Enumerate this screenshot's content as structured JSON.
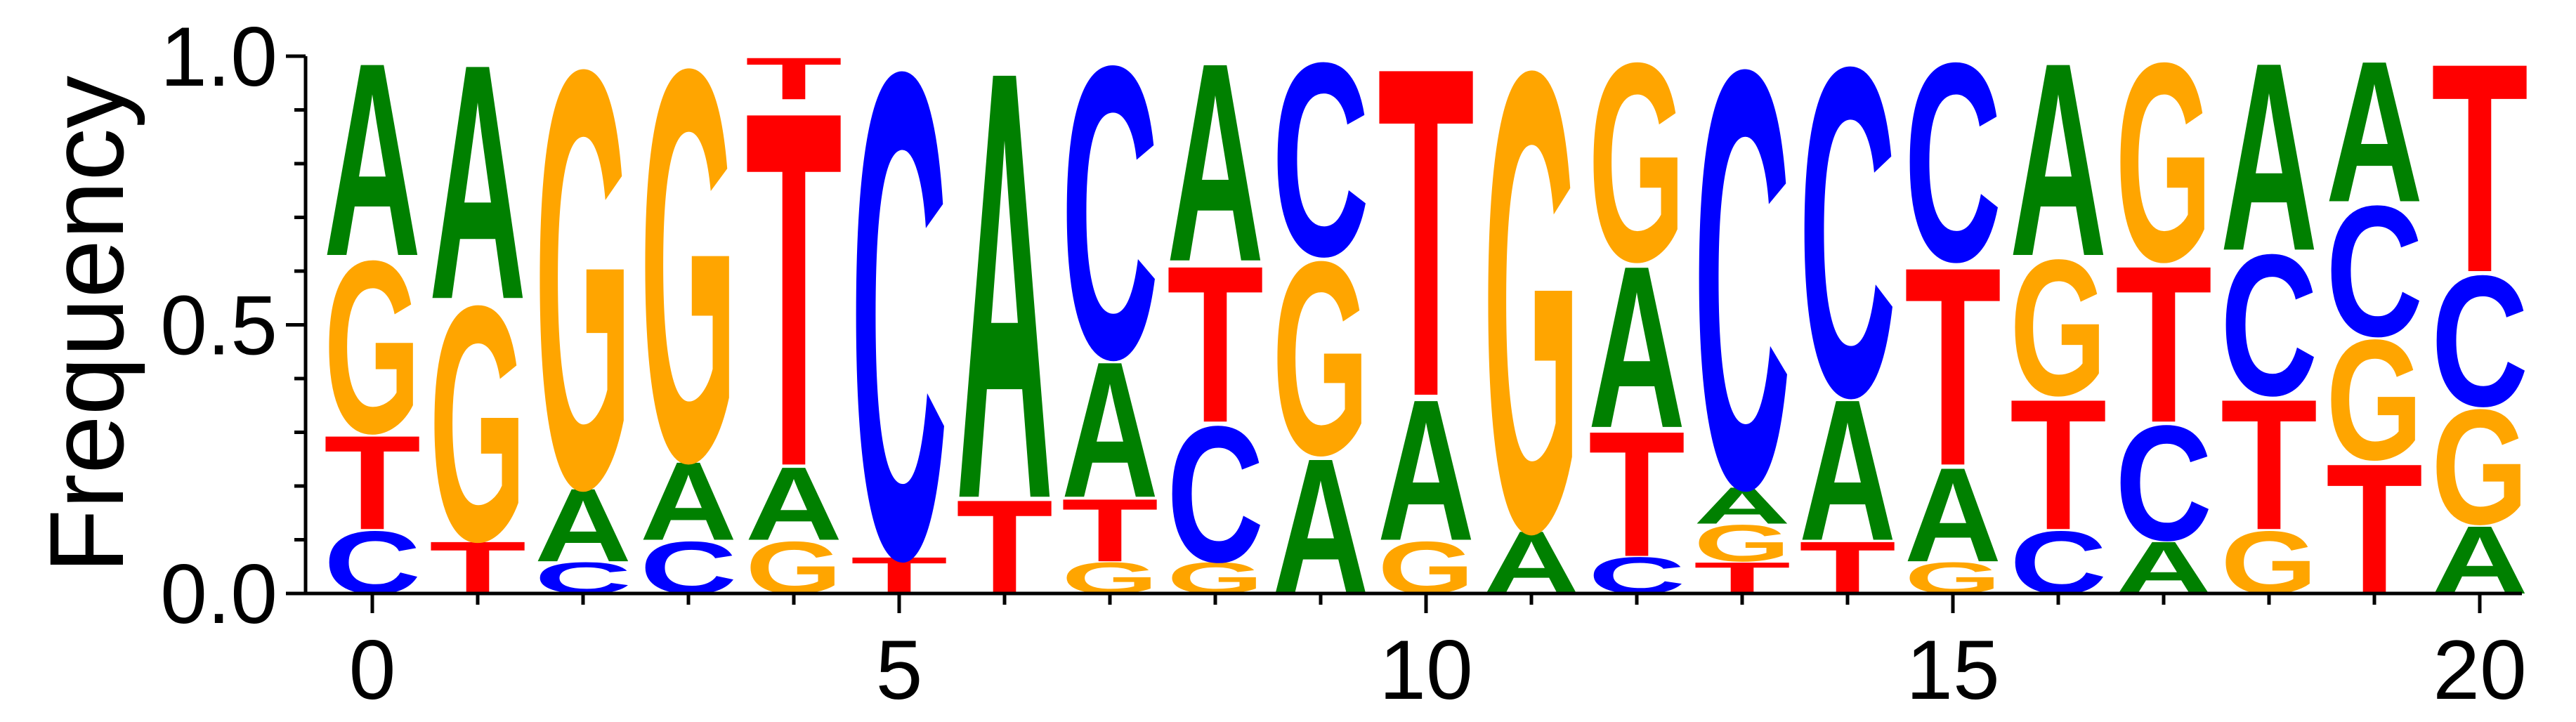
{
  "chart_data": {
    "type": "sequence-logo",
    "ylabel": "Frequency",
    "ylim": [
      0,
      1
    ],
    "yticks": [
      "0.0",
      "0.5",
      "1.0"
    ],
    "xticks": [
      "0",
      "5",
      "10",
      "15",
      "20"
    ],
    "xtick_values": [
      0,
      5,
      10,
      15,
      20
    ],
    "colors": {
      "A": "#008000",
      "C": "#0000ff",
      "G": "#ffa500",
      "T": "#ff0000"
    },
    "positions": [
      {
        "pos": 0,
        "stack": [
          [
            "C",
            0.12
          ],
          [
            "T",
            0.18
          ],
          [
            "G",
            0.33
          ],
          [
            "A",
            0.37
          ]
        ]
      },
      {
        "pos": 1,
        "stack": [
          [
            "T",
            0.1
          ],
          [
            "G",
            0.45
          ],
          [
            "A",
            0.45
          ]
        ]
      },
      {
        "pos": 2,
        "stack": [
          [
            "C",
            0.06
          ],
          [
            "A",
            0.14
          ],
          [
            "G",
            0.8
          ]
        ]
      },
      {
        "pos": 3,
        "stack": [
          [
            "C",
            0.1
          ],
          [
            "A",
            0.15
          ],
          [
            "G",
            0.75
          ]
        ]
      },
      {
        "pos": 4,
        "stack": [
          [
            "G",
            0.1
          ],
          [
            "A",
            0.14
          ],
          [
            "T",
            0.68
          ],
          [
            "T2",
            0.08
          ]
        ]
      },
      {
        "pos": 5,
        "stack": [
          [
            "T",
            0.07
          ],
          [
            "C",
            0.93
          ]
        ]
      },
      {
        "pos": 6,
        "stack": [
          [
            "T",
            0.18
          ],
          [
            "A",
            0.82
          ]
        ]
      },
      {
        "pos": 7,
        "stack": [
          [
            "G",
            0.06
          ],
          [
            "T",
            0.12
          ],
          [
            "A",
            0.26
          ],
          [
            "C",
            0.56
          ]
        ]
      },
      {
        "pos": 8,
        "stack": [
          [
            "G",
            0.06
          ],
          [
            "C",
            0.26
          ],
          [
            "T",
            0.3
          ],
          [
            "A",
            0.38
          ]
        ]
      },
      {
        "pos": 9,
        "stack": [
          [
            "A",
            0.26
          ],
          [
            "G",
            0.37
          ],
          [
            "C",
            0.37
          ]
        ]
      },
      {
        "pos": 10,
        "stack": [
          [
            "G",
            0.1
          ],
          [
            "A",
            0.27
          ],
          [
            "T",
            0.63
          ]
        ]
      },
      {
        "pos": 11,
        "stack": [
          [
            "A",
            0.12
          ],
          [
            "G",
            0.88
          ]
        ]
      },
      {
        "pos": 12,
        "stack": [
          [
            "C",
            0.07
          ],
          [
            "T",
            0.24
          ],
          [
            "A",
            0.31
          ],
          [
            "G",
            0.38
          ]
        ]
      },
      {
        "pos": 13,
        "stack": [
          [
            "T",
            0.06
          ],
          [
            "G",
            0.07
          ],
          [
            "A",
            0.07
          ],
          [
            "C",
            0.8
          ]
        ]
      },
      {
        "pos": 14,
        "stack": [
          [
            "T",
            0.1
          ],
          [
            "A",
            0.27
          ],
          [
            "C",
            0.63
          ]
        ]
      },
      {
        "pos": 15,
        "stack": [
          [
            "G",
            0.06
          ],
          [
            "A",
            0.18
          ],
          [
            "T",
            0.38
          ],
          [
            "C",
            0.38
          ]
        ]
      },
      {
        "pos": 16,
        "stack": [
          [
            "C",
            0.12
          ],
          [
            "T",
            0.25
          ],
          [
            "G",
            0.26
          ],
          [
            "A",
            0.37
          ]
        ]
      },
      {
        "pos": 17,
        "stack": [
          [
            "A",
            0.1
          ],
          [
            "C",
            0.22
          ],
          [
            "T",
            0.3
          ],
          [
            "G",
            0.38
          ]
        ]
      },
      {
        "pos": 18,
        "stack": [
          [
            "G",
            0.12
          ],
          [
            "T",
            0.25
          ],
          [
            "C",
            0.27
          ],
          [
            "A",
            0.36
          ]
        ]
      },
      {
        "pos": 19,
        "stack": [
          [
            "T",
            0.25
          ],
          [
            "G",
            0.23
          ],
          [
            "C",
            0.25
          ],
          [
            "A",
            0.27
          ]
        ]
      },
      {
        "pos": 20,
        "stack": [
          [
            "A",
            0.13
          ],
          [
            "G",
            0.22
          ],
          [
            "C",
            0.25
          ],
          [
            "T",
            0.4
          ]
        ]
      }
    ]
  }
}
